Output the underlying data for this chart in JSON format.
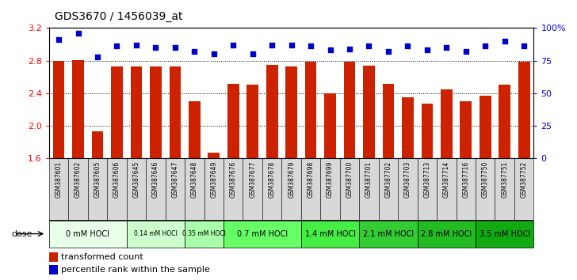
{
  "title": "GDS3670 / 1456039_at",
  "samples": [
    "GSM387601",
    "GSM387602",
    "GSM387605",
    "GSM387606",
    "GSM387645",
    "GSM387646",
    "GSM387647",
    "GSM387648",
    "GSM387649",
    "GSM387676",
    "GSM387677",
    "GSM387678",
    "GSM387679",
    "GSM387698",
    "GSM387699",
    "GSM387700",
    "GSM387701",
    "GSM387702",
    "GSM387703",
    "GSM387713",
    "GSM387714",
    "GSM387716",
    "GSM387750",
    "GSM387751",
    "GSM387752"
  ],
  "bar_values": [
    2.8,
    2.81,
    1.93,
    2.73,
    2.73,
    2.73,
    2.73,
    2.3,
    1.67,
    2.51,
    2.5,
    2.75,
    2.73,
    2.79,
    2.4,
    2.79,
    2.74,
    2.51,
    2.35,
    2.27,
    2.45,
    2.3,
    2.37,
    2.5,
    2.79
  ],
  "dot_percentiles": [
    91,
    96,
    78,
    86,
    87,
    85,
    85,
    82,
    80,
    87,
    80,
    87,
    87,
    86,
    83,
    84,
    86,
    82,
    86,
    83,
    85,
    82,
    86,
    90,
    86
  ],
  "groups": [
    {
      "label": "0 mM HOCl",
      "start": 0,
      "end": 4,
      "color": "#e8ffe8"
    },
    {
      "label": "0.14 mM HOCl",
      "start": 4,
      "end": 7,
      "color": "#ccffcc"
    },
    {
      "label": "0.35 mM HOCl",
      "start": 7,
      "end": 9,
      "color": "#aaffaa"
    },
    {
      "label": "0.7 mM HOCl",
      "start": 9,
      "end": 13,
      "color": "#66ff66"
    },
    {
      "label": "1.4 mM HOCl",
      "start": 13,
      "end": 16,
      "color": "#44ee44"
    },
    {
      "label": "2.1 mM HOCl",
      "start": 16,
      "end": 19,
      "color": "#33cc33"
    },
    {
      "label": "2.8 mM HOCl",
      "start": 19,
      "end": 22,
      "color": "#22bb22"
    },
    {
      "label": "3.5 mM HOCl",
      "start": 22,
      "end": 25,
      "color": "#11aa11"
    }
  ],
  "ylim": [
    1.6,
    3.2
  ],
  "yticks_left": [
    1.6,
    2.0,
    2.4,
    2.8,
    3.2
  ],
  "yticks_right_pct": [
    0,
    25,
    50,
    75,
    100
  ],
  "bar_color": "#cc2200",
  "dot_color": "#0000cc",
  "sample_cell_color": "#d8d8d8",
  "bg_color": "#ffffff"
}
